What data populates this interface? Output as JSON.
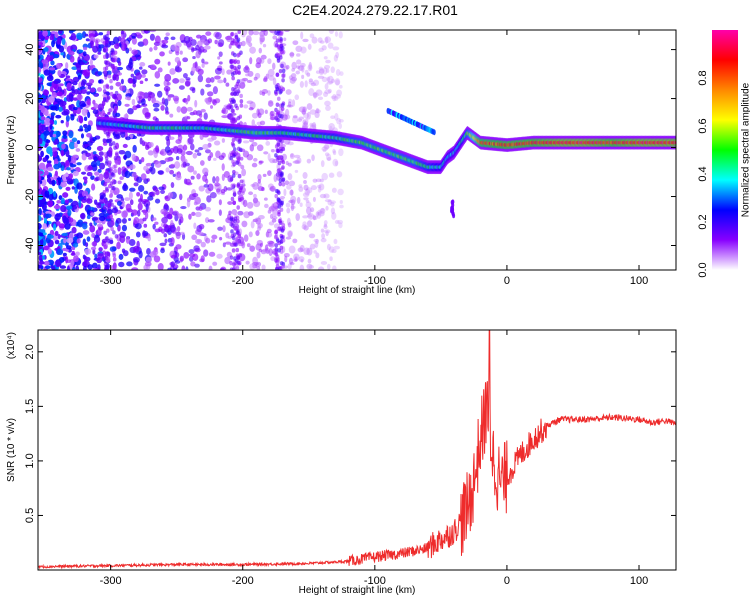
{
  "title": "C2E4.2024.279.22.17.R01",
  "colors": {
    "snr_line": "#ee2b2b",
    "axis": "#000000"
  },
  "chart_data": [
    {
      "type": "heatmap",
      "xlabel": "Height of straight line (km)",
      "ylabel": "Frequency (Hz)",
      "xlim": [
        -355,
        128
      ],
      "ylim": [
        -50,
        48
      ],
      "xticks": [
        -300,
        -200,
        -100,
        0,
        100
      ],
      "yticks": [
        -40,
        -20,
        0,
        20,
        40
      ],
      "colorbar": {
        "label": "Normalized spectral amplitude",
        "range": [
          0,
          1
        ],
        "ticks": [
          "0.0",
          "0.2",
          "0.4",
          "0.6",
          "0.8"
        ],
        "tick_values": [
          0.0,
          0.2,
          0.4,
          0.6,
          0.8
        ],
        "colormap": [
          "#ffffff",
          "#8800ff",
          "#0000ff",
          "#00ffff",
          "#00ff00",
          "#ffff00",
          "#ff8800",
          "#ff0000",
          "#ff00aa"
        ]
      },
      "ridge": {
        "x": [
          -310,
          -290,
          -270,
          -250,
          -230,
          -210,
          -190,
          -170,
          -150,
          -130,
          -110,
          -95,
          -80,
          -70,
          -60,
          -50,
          -45,
          -40,
          -35,
          -30,
          -20,
          0,
          20,
          40,
          60,
          80,
          100,
          128
        ],
        "freq": [
          10,
          9,
          8,
          8,
          8,
          7,
          6,
          6,
          5,
          4,
          2,
          -1,
          -4,
          -6,
          -8,
          -8,
          -4,
          -2,
          2,
          6,
          2,
          1,
          2,
          2,
          2,
          2,
          2,
          2
        ],
        "amplitude": [
          0.35,
          0.4,
          0.45,
          0.45,
          0.4,
          0.45,
          0.5,
          0.45,
          0.45,
          0.45,
          0.5,
          0.5,
          0.5,
          0.5,
          0.45,
          0.4,
          0.35,
          0.35,
          0.4,
          0.5,
          0.8,
          0.85,
          0.85,
          0.9,
          0.9,
          0.85,
          0.9,
          0.9
        ]
      }
    },
    {
      "type": "line",
      "xlabel": "Height of straight line (km)",
      "ylabel": "SNR (10 * v/v)",
      "scale_label": "(x10⁴)",
      "xlim": [
        -355,
        128
      ],
      "ylim": [
        0,
        2.2
      ],
      "xticks": [
        -300,
        -200,
        -100,
        0,
        100
      ],
      "yticks": [
        0.5,
        1.0,
        1.5,
        2.0
      ],
      "ytick_labels": [
        "0.5",
        "1.0",
        "1.5",
        "2.0"
      ],
      "series": [
        {
          "x": [
            -355,
            -300,
            -250,
            -200,
            -150,
            -120,
            -100,
            -80,
            -60,
            -50,
            -40,
            -30,
            -25,
            -20,
            -15,
            -10,
            -5,
            0,
            10,
            20,
            30,
            40,
            60,
            80,
            100,
            110,
            120,
            128
          ],
          "values": [
            0.03,
            0.04,
            0.05,
            0.05,
            0.06,
            0.08,
            0.12,
            0.15,
            0.2,
            0.28,
            0.35,
            0.55,
            0.8,
            1.2,
            1.5,
            1.0,
            0.8,
            0.85,
            1.05,
            1.2,
            1.32,
            1.38,
            1.38,
            1.4,
            1.38,
            1.35,
            1.37,
            1.34
          ]
        }
      ]
    }
  ]
}
